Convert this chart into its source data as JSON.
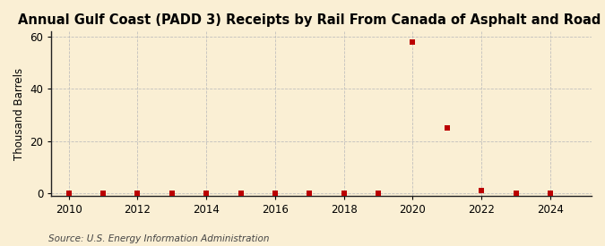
{
  "title": "Annual Gulf Coast (PADD 3) Receipts by Rail From Canada of Asphalt and Road Oil",
  "ylabel": "Thousand Barrels",
  "source_text": "Source: U.S. Energy Information Administration",
  "background_color": "#faefd4",
  "years": [
    2010,
    2011,
    2012,
    2013,
    2014,
    2015,
    2016,
    2017,
    2018,
    2019,
    2020,
    2021,
    2022,
    2023,
    2024
  ],
  "values": [
    0,
    0,
    0,
    0,
    0,
    0,
    0,
    0,
    0,
    0,
    58,
    25,
    1,
    0,
    0
  ],
  "marker_color": "#bb0000",
  "marker_size": 16,
  "xlim": [
    2009.5,
    2025.2
  ],
  "ylim": [
    -1,
    62
  ],
  "yticks": [
    0,
    20,
    40,
    60
  ],
  "xticks": [
    2010,
    2012,
    2014,
    2016,
    2018,
    2020,
    2022,
    2024
  ],
  "grid_color": "#bbbbbb",
  "grid_style": "--",
  "grid_alpha": 0.9,
  "title_fontsize": 10.5,
  "label_fontsize": 8.5,
  "tick_fontsize": 8.5,
  "source_fontsize": 7.5
}
